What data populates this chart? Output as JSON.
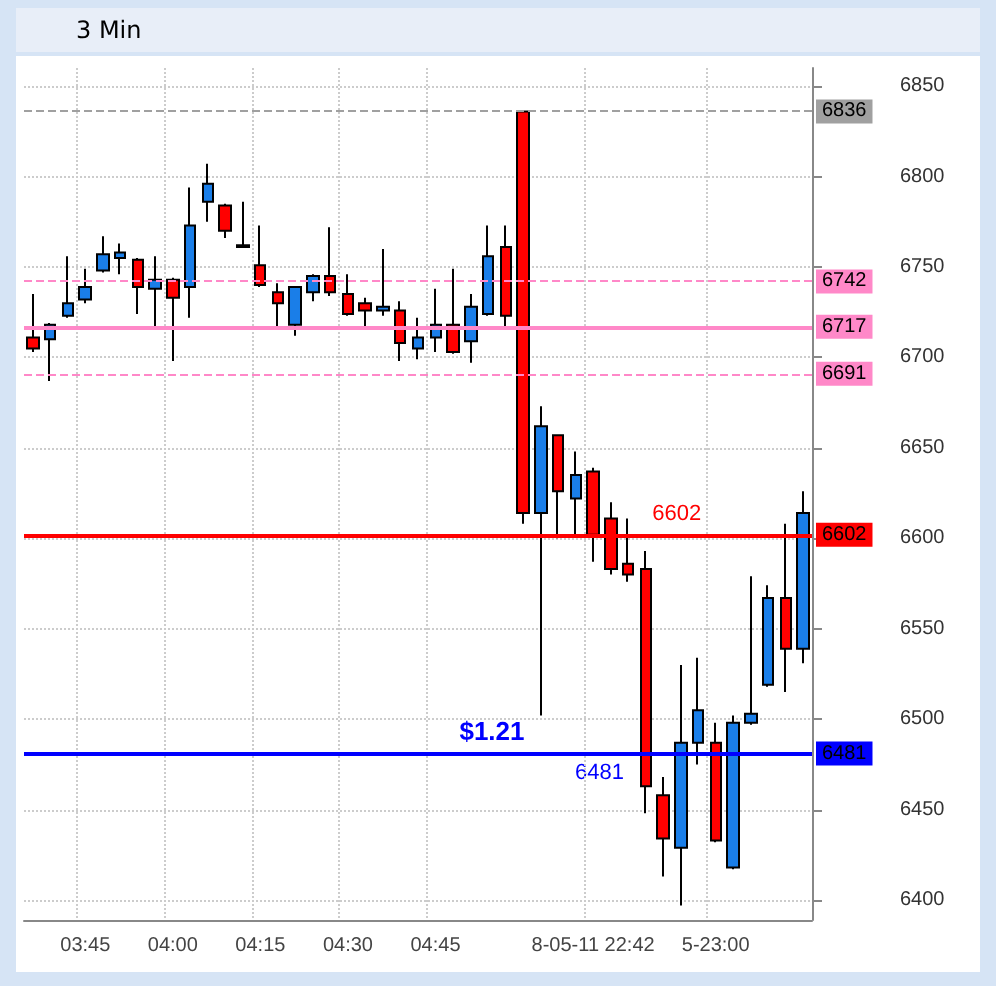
{
  "chart_data": {
    "type": "candlestick",
    "title": "3 Min",
    "categories": [
      null,
      null,
      null,
      "03:45",
      null,
      null,
      null,
      null,
      "04:00",
      null,
      null,
      null,
      null,
      "04:15",
      null,
      null,
      null,
      null,
      "04:30",
      null,
      null,
      null,
      null,
      "04:45",
      null,
      null,
      null,
      null,
      null,
      null,
      null,
      null,
      "8-05-11 22:42",
      null,
      null,
      null,
      null,
      null,
      null,
      "5-23:00",
      null,
      null,
      null,
      null,
      null
    ],
    "ohlc": [
      [
        6711,
        6735,
        6703,
        6705
      ],
      [
        6710,
        6719,
        6687,
        6718
      ],
      [
        6723,
        6756,
        6722,
        6730
      ],
      [
        6732,
        6749,
        6730,
        6739
      ],
      [
        6748,
        6767,
        6747,
        6757
      ],
      [
        6755,
        6763,
        6746,
        6758
      ],
      [
        6754,
        6755,
        6724,
        6739
      ],
      [
        6738,
        6756,
        6717,
        6743
      ],
      [
        6743,
        6744,
        6698,
        6733
      ],
      [
        6739,
        6794,
        6722,
        6773
      ],
      [
        6786,
        6807,
        6775,
        6796
      ],
      [
        6784,
        6785,
        6766,
        6770
      ],
      [
        6762,
        6786,
        6761,
        6761
      ],
      [
        6751,
        6773,
        6739,
        6740
      ],
      [
        6736,
        6741,
        6717,
        6730
      ],
      [
        6718,
        6739,
        6712,
        6739
      ],
      [
        6736,
        6746,
        6731,
        6745
      ],
      [
        6745,
        6772,
        6734,
        6736
      ],
      [
        6735,
        6746,
        6723,
        6724
      ],
      [
        6730,
        6733,
        6717,
        6726
      ],
      [
        6726,
        6760,
        6723,
        6728
      ],
      [
        6726,
        6731,
        6698,
        6708
      ],
      [
        6705,
        6722,
        6699,
        6711
      ],
      [
        6711,
        6738,
        6703,
        6718
      ],
      [
        6718,
        6749,
        6702,
        6703
      ],
      [
        6709,
        6735,
        6697,
        6728
      ],
      [
        6724,
        6773,
        6723,
        6756
      ],
      [
        6761,
        6773,
        6717,
        6723
      ],
      [
        6836,
        6836,
        6608,
        6614
      ],
      [
        6614,
        6673,
        6502,
        6662
      ],
      [
        6657,
        6657,
        6600,
        6626
      ],
      [
        6622,
        6648,
        6601,
        6635
      ],
      [
        6637,
        6639,
        6587,
        6602
      ],
      [
        6611,
        6620,
        6580,
        6583
      ],
      [
        6586,
        6611,
        6576,
        6580
      ],
      [
        6583,
        6593,
        6448,
        6463
      ],
      [
        6458,
        6468,
        6413,
        6434
      ],
      [
        6429,
        6530,
        6397,
        6487
      ],
      [
        6487,
        6534,
        6475,
        6505
      ],
      [
        6487,
        6498,
        6432,
        6433
      ],
      [
        6418,
        6502,
        6417,
        6498
      ],
      [
        6498,
        6579,
        6497,
        6503
      ],
      [
        6519,
        6574,
        6518,
        6567
      ],
      [
        6567,
        6608,
        6515,
        6539
      ],
      [
        6539,
        6626,
        6531,
        6614
      ]
    ],
    "colors": [
      "#ff0000",
      "#1a7ee8",
      "#1a7ee8",
      "#1a7ee8",
      "#1a7ee8",
      "#1a7ee8",
      "#ff0000",
      "#1a7ee8",
      "#ff0000",
      "#1a7ee8",
      "#1a7ee8",
      "#ff0000",
      "#ff0000",
      "#ff0000",
      "#ff0000",
      "#1a7ee8",
      "#1a7ee8",
      "#ff0000",
      "#ff0000",
      "#ff0000",
      "#1a7ee8",
      "#ff0000",
      "#1a7ee8",
      "#1a7ee8",
      "#ff0000",
      "#1a7ee8",
      "#1a7ee8",
      "#ff0000",
      "#ff0000",
      "#1a7ee8",
      "#ff0000",
      "#1a7ee8",
      "#ff0000",
      "#ff0000",
      "#ff0000",
      "#ff0000",
      "#ff0000",
      "#1a7ee8",
      "#1a7ee8",
      "#ff0000",
      "#1a7ee8",
      "#1a7ee8",
      "#1a7ee8",
      "#ff0000",
      "#1a7ee8"
    ],
    "ylim": [
      6389,
      6860
    ],
    "yticks": [
      6400,
      6450,
      6500,
      6550,
      6600,
      6650,
      6700,
      6750,
      6800,
      6850
    ],
    "ref_lines": [
      {
        "axis": "y",
        "value": 6836,
        "label": "6836",
        "color": "#a0a0a0",
        "line_style": "dashed"
      },
      {
        "axis": "y",
        "value": 6742,
        "label": "6742",
        "color": "#ff88c8",
        "line_style": "dashed"
      },
      {
        "axis": "y",
        "value": 6717,
        "label": "6717",
        "color": "#ff88c8",
        "line_style": "solid"
      },
      {
        "axis": "y",
        "value": 6691,
        "label": "6691",
        "color": "#ff88c8",
        "line_style": "dashed"
      },
      {
        "axis": "y",
        "value": 6602,
        "label": "6602",
        "color": "#ff0000",
        "line_style": "solid"
      },
      {
        "axis": "y",
        "value": 6481,
        "label": "6481",
        "color": "#0000ff",
        "line_style": "solid"
      }
    ],
    "annotations": [
      {
        "text": "6602",
        "y": 6602
      },
      {
        "text": "6481",
        "y": 6481
      },
      {
        "text": "$1.21",
        "y": 6481
      }
    ],
    "grid": true
  }
}
